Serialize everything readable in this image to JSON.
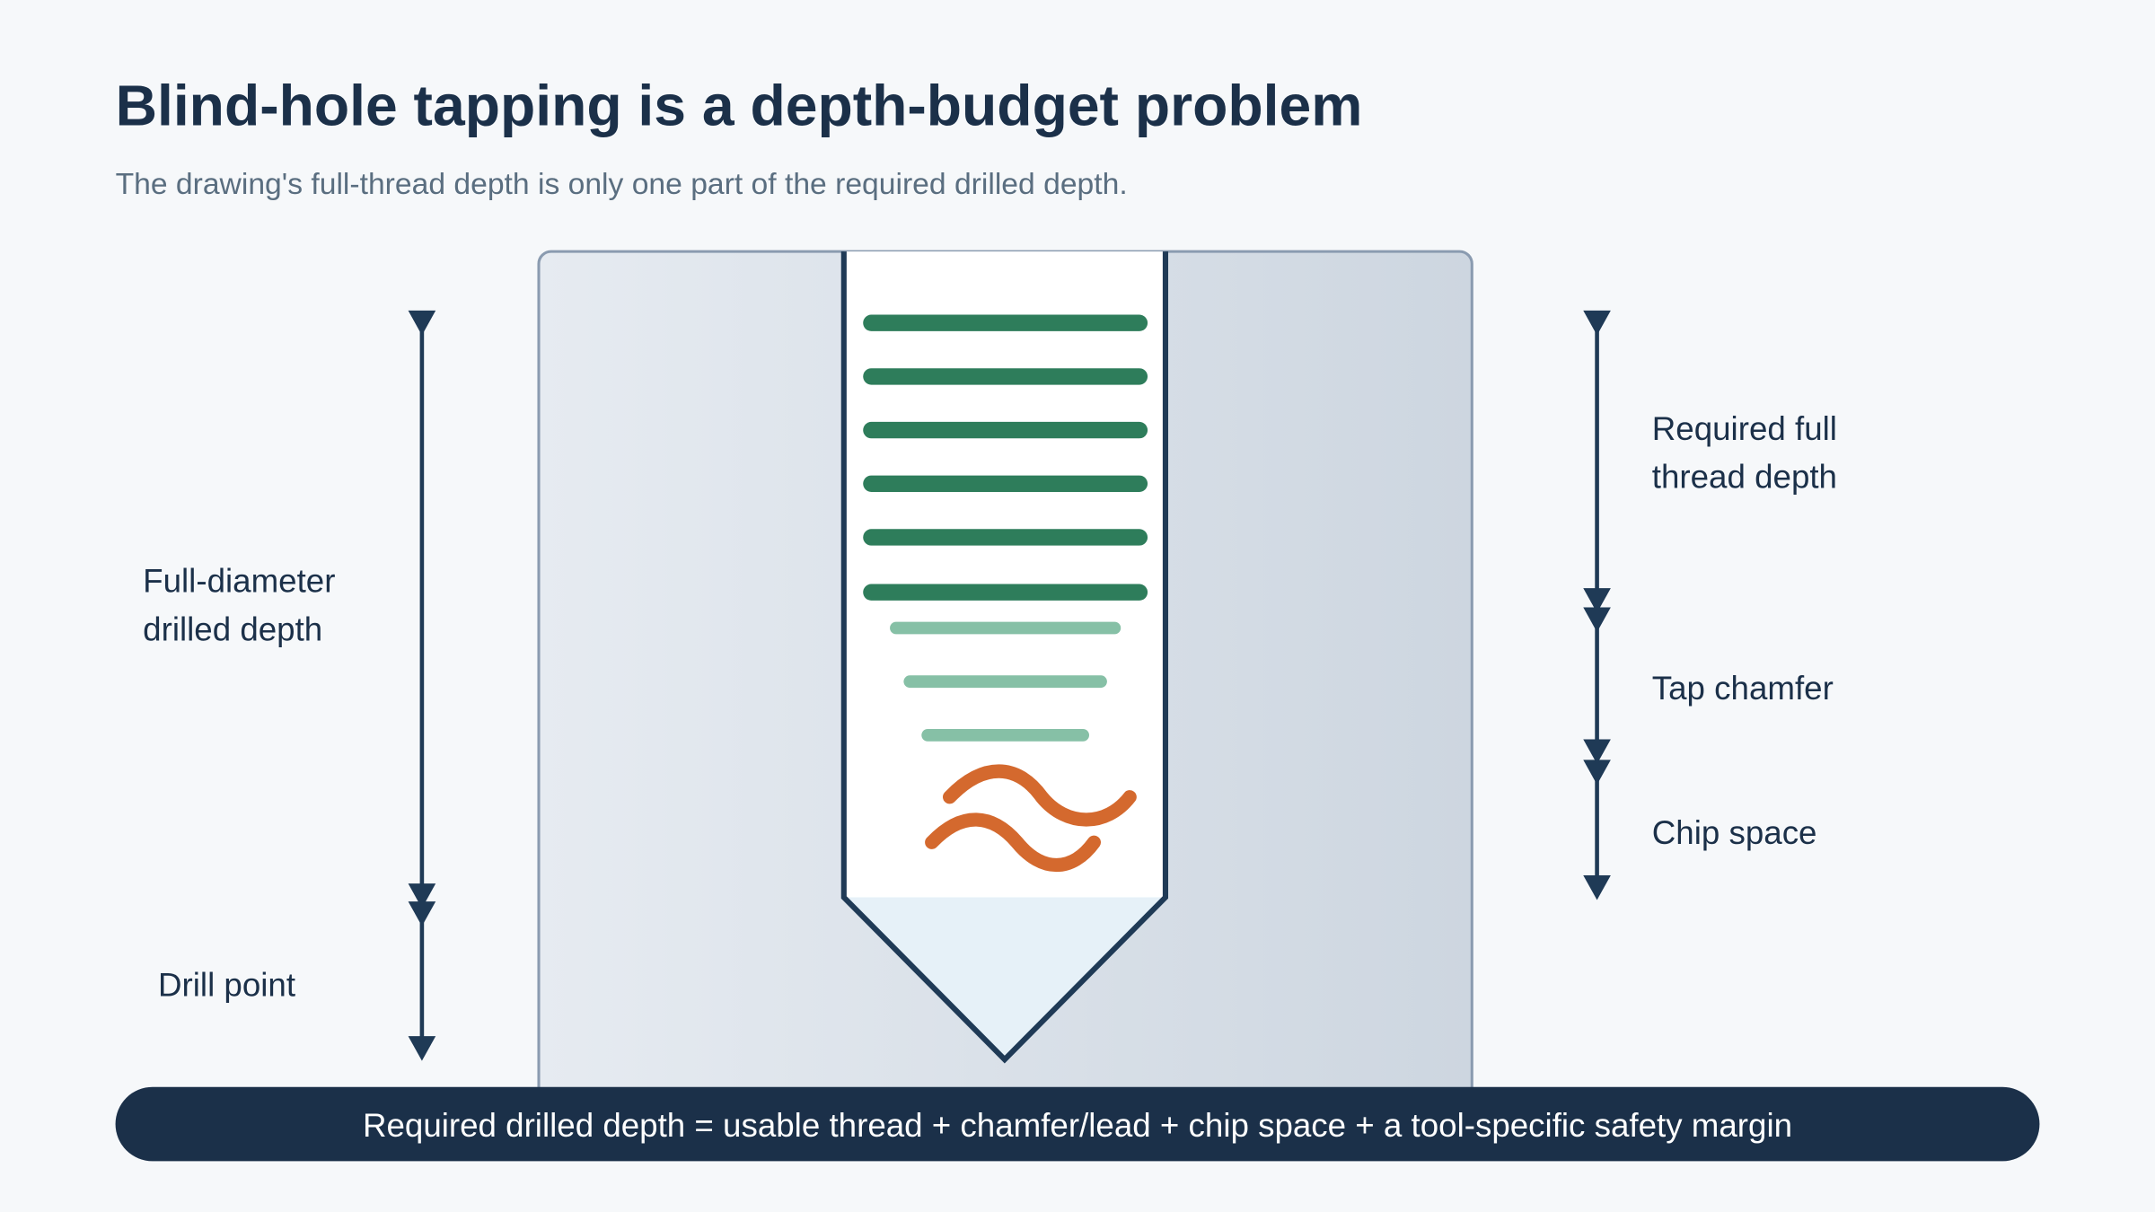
{
  "header": {
    "title": "Blind-hole tapping is a depth-budget problem",
    "subtitle": "The drawing's full-thread depth is only one part of the required drilled depth."
  },
  "left_labels": {
    "drilled_depth": [
      "Full-diameter",
      "drilled depth"
    ],
    "drill_point": "Drill point"
  },
  "right_labels": {
    "thread_depth": [
      "Required full",
      "thread depth"
    ],
    "tap_chamfer": "Tap chamfer",
    "chip_space": "Chip space"
  },
  "footer": "Required drilled depth = usable thread + chamfer/lead + chip space + a tool-specific safety margin"
}
